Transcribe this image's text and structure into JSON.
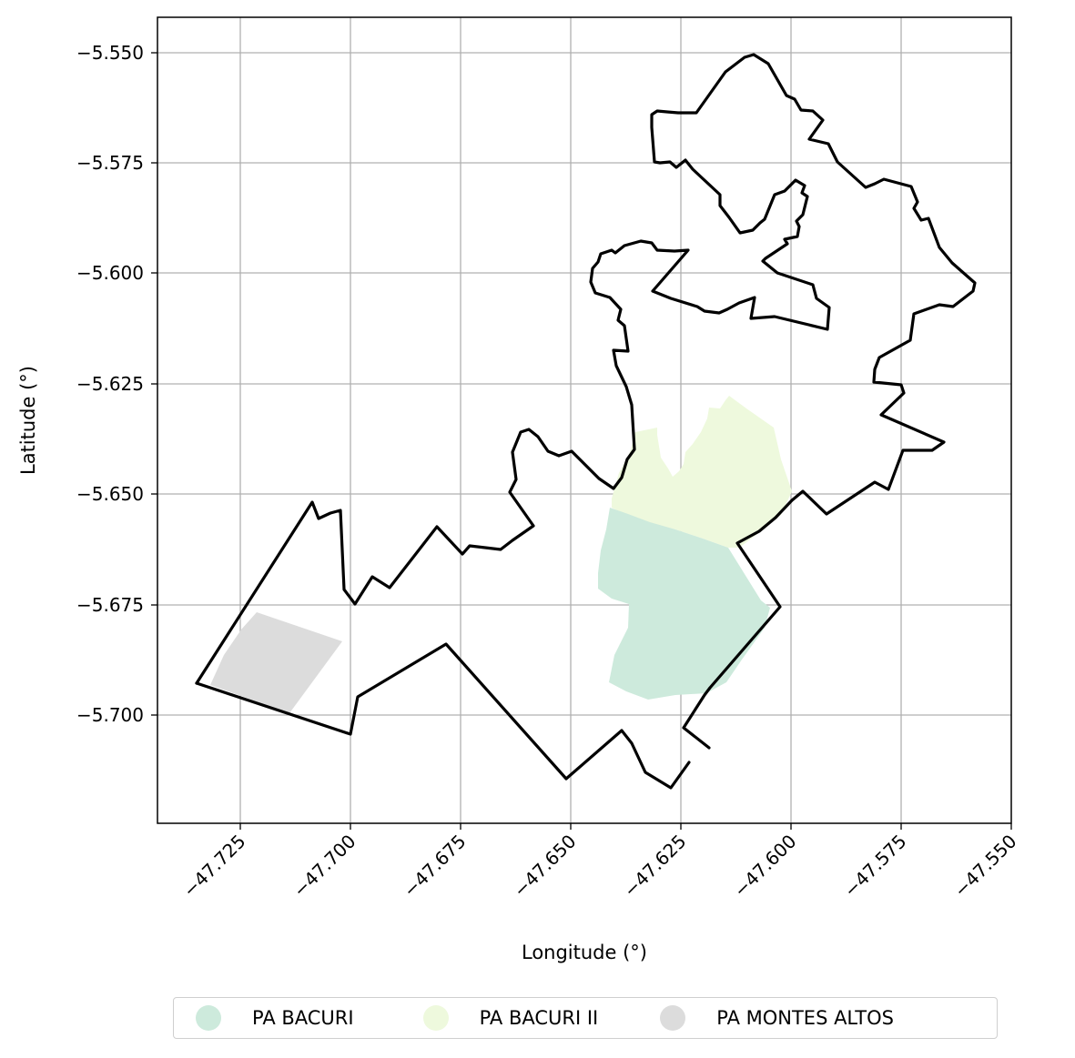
{
  "map": {
    "xlabel": "Longitude (°)",
    "ylabel": "Latitude (°)",
    "xlim": [
      -47.7375,
      -47.55
    ],
    "ylim": [
      -5.7242,
      -5.5418
    ],
    "grid": true,
    "xticks": [
      "−47.725",
      "−47.700",
      "−47.675",
      "−47.650",
      "−47.625",
      "−47.600",
      "−47.575",
      "−47.550"
    ],
    "yticks": [
      "−5.550",
      "−5.575",
      "−5.600",
      "−5.625",
      "−5.650",
      "−5.675",
      "−5.700"
    ],
    "boundary_color": "#000000",
    "legend_position": "bottom-center"
  },
  "legend": [
    {
      "label": "PA BACURI",
      "color": "#cdeadc"
    },
    {
      "label": "PA BACURI II",
      "color": "#eef9dd"
    },
    {
      "label": "PA MONTES ALTOS",
      "color": "#dcdcdc"
    }
  ]
}
